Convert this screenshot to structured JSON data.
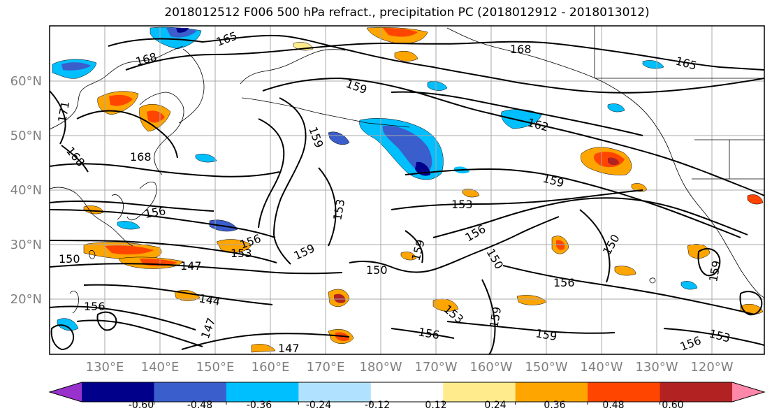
{
  "title": "2018012512 F006 500 hPa refract., precipitation PC (2018012912 - 2018013012)",
  "lat_labels": [
    "60°N",
    "50°N",
    "40°N",
    "30°N",
    "20°N"
  ],
  "lon_labels": [
    "130°E",
    "140°E",
    "150°E",
    "160°E",
    "170°E",
    "180°W",
    "170°W",
    "160°W",
    "150°W",
    "140°W",
    "130°W",
    "120°W"
  ],
  "colorbar": {
    "colors": [
      "#9932cc",
      "#00008b",
      "#3a5ecb",
      "#00bfff",
      "#b0e2ff",
      "#ffffff",
      "#ffeb8c",
      "#ffa500",
      "#ff4500",
      "#b22222",
      "#ff88aa"
    ],
    "tick_labels": [
      "-0.60",
      "-0.48",
      "-0.36",
      "-0.24",
      "-0.12",
      "0.12",
      "0.24",
      "0.36",
      "0.48",
      "0.60"
    ]
  },
  "contour_labels": [
    "165",
    "168",
    "168",
    "165",
    "171",
    "168",
    "168",
    "159",
    "159",
    "162",
    "159",
    "156",
    "153",
    "153",
    "156",
    "159",
    "159",
    "150",
    "150",
    "156",
    "150",
    "156",
    "153",
    "147",
    "150",
    "144",
    "147",
    "147",
    "156",
    "153",
    "159",
    "156",
    "159",
    "156",
    "153",
    "159"
  ],
  "contour_levels": [
    "144",
    "147",
    "150",
    "153",
    "156",
    "159",
    "162",
    "165",
    "168",
    "171"
  ],
  "shading_colors": {
    "negative_light": "#00bfff",
    "negative_mid": "#3a5ecb",
    "negative_dark": "#00008b",
    "positive_light": "#ffeb8c",
    "positive_mid": "#ffa500",
    "positive_strong": "#ff4500",
    "positive_dark": "#b22222"
  }
}
